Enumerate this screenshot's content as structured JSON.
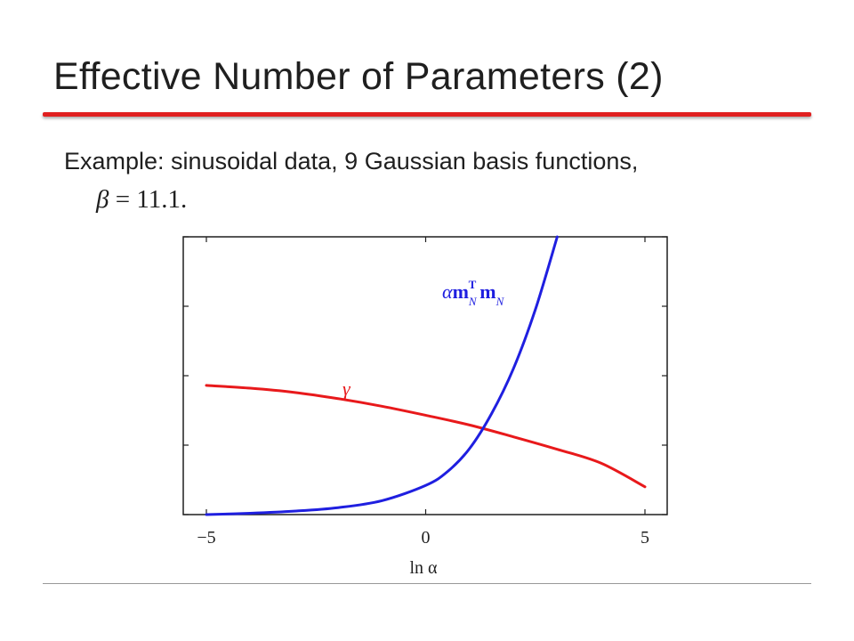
{
  "slide": {
    "title": "Effective Number of Parameters (2)",
    "example_text": "Example: sinusoidal data, 9 Gaussian basis functions,",
    "beta_symbol": "β",
    "beta_equals": " = ",
    "beta_value": "11.1."
  },
  "chart_data": {
    "type": "line",
    "xlabel": "ln α",
    "ylabel": "",
    "xlim": [
      -5,
      5
    ],
    "ylim": [
      0,
      4
    ],
    "x_ticks": [
      -5,
      0,
      5
    ],
    "x_tick_labels": [
      "−5",
      "0",
      "5"
    ],
    "y_ticks": [
      0,
      1,
      2,
      3,
      4
    ],
    "grid": false,
    "series": [
      {
        "name": "γ",
        "color": "#e8191b",
        "x": [
          -5,
          -4,
          -3,
          -2,
          -1,
          0,
          1,
          2,
          3,
          4,
          5
        ],
        "y": [
          1.86,
          1.82,
          1.76,
          1.67,
          1.56,
          1.43,
          1.29,
          1.12,
          0.94,
          0.74,
          0.4
        ]
      },
      {
        "name": "αm_Nᵀ m_N",
        "color": "#1f1fe0",
        "x": [
          -5,
          -4,
          -3,
          -2,
          -1,
          0,
          0.5,
          1,
          1.5,
          2,
          2.5,
          3
        ],
        "y": [
          0.0,
          0.02,
          0.05,
          0.1,
          0.2,
          0.42,
          0.62,
          0.95,
          1.45,
          2.1,
          2.95,
          4.0
        ]
      }
    ]
  }
}
